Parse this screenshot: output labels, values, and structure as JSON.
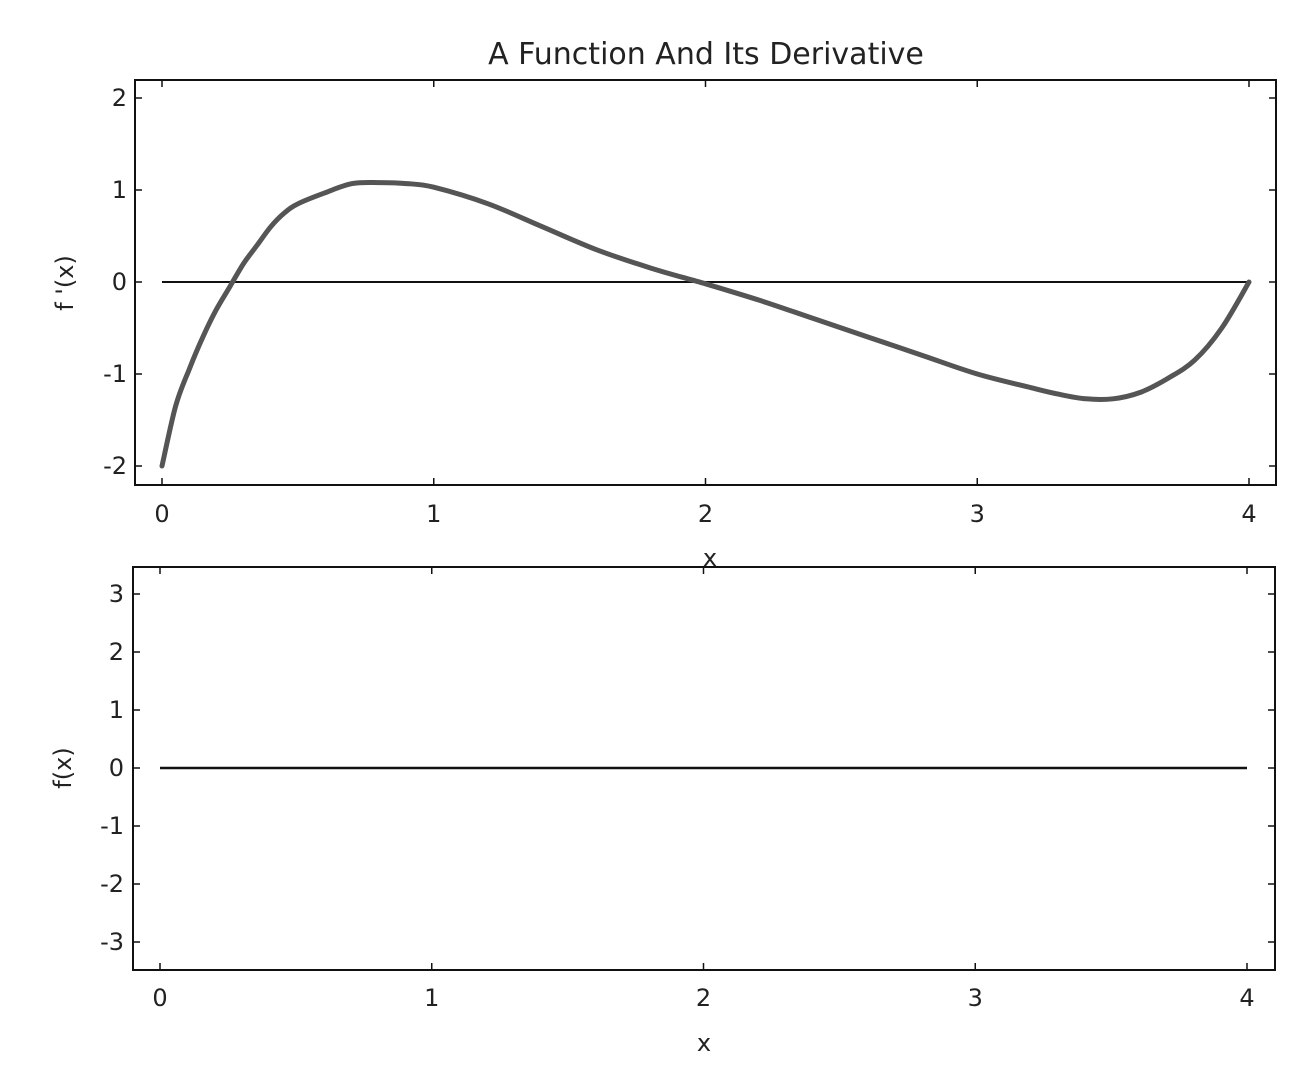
{
  "chart_data": [
    {
      "type": "line",
      "title": "A Function And Its Derivative",
      "xlabel": "x",
      "ylabel": "f '(x)",
      "xlim": [
        0,
        4
      ],
      "ylim": [
        -2.2,
        2.2
      ],
      "xticks": [
        "0",
        "1",
        "2",
        "3",
        "4"
      ],
      "yticks": [
        "-2",
        "-1",
        "0",
        "1",
        "2"
      ],
      "grid": false,
      "reference_line": {
        "y": 0
      },
      "series": [
        {
          "x": [
            0,
            0.05,
            0.1,
            0.15,
            0.2,
            0.25,
            0.3,
            0.35,
            0.4,
            0.45,
            0.5,
            0.6,
            0.7,
            0.8,
            0.9,
            1.0,
            1.2,
            1.4,
            1.6,
            1.8,
            2.0,
            2.2,
            2.4,
            2.6,
            2.8,
            3.0,
            3.2,
            3.3,
            3.4,
            3.5,
            3.6,
            3.7,
            3.8,
            3.9,
            4.0
          ],
          "y": [
            -2.0,
            -1.35,
            -0.95,
            -0.6,
            -0.3,
            -0.05,
            0.2,
            0.4,
            0.6,
            0.75,
            0.85,
            0.97,
            1.07,
            1.08,
            1.07,
            1.03,
            0.85,
            0.6,
            0.35,
            0.15,
            -0.02,
            -0.2,
            -0.4,
            -0.6,
            -0.8,
            -1.0,
            -1.15,
            -1.22,
            -1.27,
            -1.27,
            -1.2,
            -1.05,
            -0.85,
            -0.5,
            0.0
          ]
        }
      ]
    },
    {
      "type": "line",
      "title": "",
      "xlabel": "x",
      "ylabel": "f(x)",
      "xlim": [
        0,
        4
      ],
      "ylim": [
        -3.5,
        3.5
      ],
      "xticks": [
        "0",
        "1",
        "2",
        "3",
        "4"
      ],
      "yticks": [
        "-3",
        "-2",
        "-1",
        "0",
        "1",
        "2",
        "3"
      ],
      "grid": false,
      "series": [
        {
          "x": [
            0,
            4
          ],
          "y": [
            0,
            0
          ]
        }
      ]
    }
  ]
}
